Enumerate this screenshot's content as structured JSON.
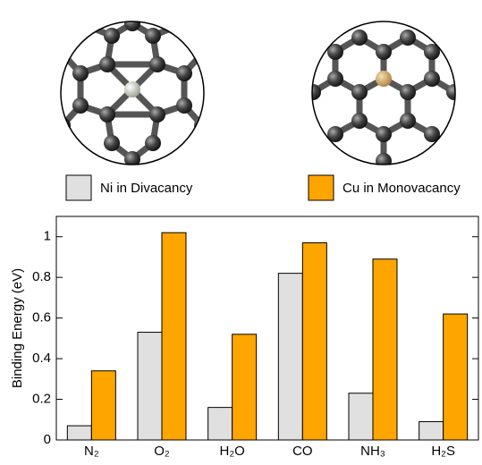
{
  "chart_data": {
    "type": "bar",
    "ylabel": "Binding Energy (eV)",
    "categories": [
      "N₂",
      "O₂",
      "H₂O",
      "CO",
      "NH₃",
      "H₂S"
    ],
    "series": [
      {
        "name": "Ni in Divacancy",
        "color": "#e0e0e0",
        "values": [
          0.07,
          0.53,
          0.16,
          0.82,
          0.23,
          0.09
        ]
      },
      {
        "name": "Cu in Monovacancy",
        "color": "#ffa500",
        "values": [
          0.34,
          1.02,
          0.52,
          0.97,
          0.89,
          0.62
        ]
      }
    ],
    "ylim": [
      0,
      1.1
    ],
    "yticks": [
      0,
      0.2,
      0.4,
      0.6,
      0.8,
      1
    ]
  }
}
